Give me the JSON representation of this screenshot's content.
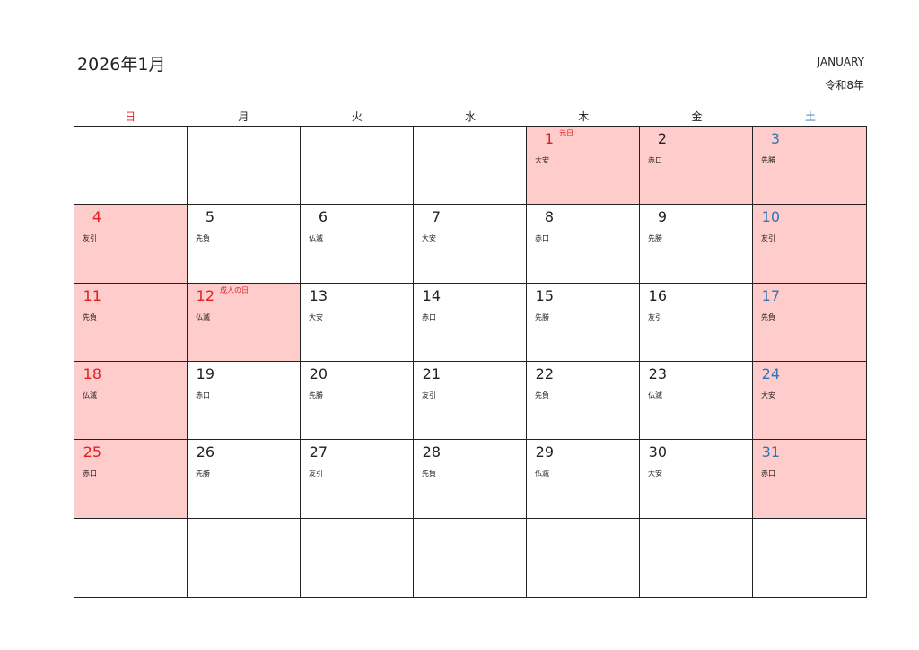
{
  "header": {
    "title": "2026年1月",
    "month_en": "JANUARY",
    "era": "令和8年"
  },
  "colors": {
    "holiday_red": "#e02020",
    "saturday_blue": "#2e75b6",
    "shade": "#ffcccc"
  },
  "weekdays": [
    {
      "label": "日",
      "color": "red"
    },
    {
      "label": "月"
    },
    {
      "label": "火"
    },
    {
      "label": "水"
    },
    {
      "label": "木"
    },
    {
      "label": "金"
    },
    {
      "label": "土",
      "color": "blue"
    }
  ],
  "weeks": [
    [
      null,
      null,
      null,
      null,
      {
        "day": "1",
        "rokuyo": "大安",
        "holiday": "元日",
        "color": "red",
        "shade": true
      },
      {
        "day": "2",
        "rokuyo": "赤口",
        "shade": true
      },
      {
        "day": "3",
        "rokuyo": "先勝",
        "color": "blue",
        "shade": true
      }
    ],
    [
      {
        "day": "4",
        "rokuyo": "友引",
        "color": "red",
        "shade": true
      },
      {
        "day": "5",
        "rokuyo": "先負"
      },
      {
        "day": "6",
        "rokuyo": "仏滅"
      },
      {
        "day": "7",
        "rokuyo": "大安"
      },
      {
        "day": "8",
        "rokuyo": "赤口"
      },
      {
        "day": "9",
        "rokuyo": "先勝"
      },
      {
        "day": "10",
        "rokuyo": "友引",
        "color": "blue",
        "shade": true
      }
    ],
    [
      {
        "day": "11",
        "rokuyo": "先負",
        "color": "red",
        "shade": true
      },
      {
        "day": "12",
        "rokuyo": "仏滅",
        "holiday": "成人の日",
        "color": "red",
        "shade": true
      },
      {
        "day": "13",
        "rokuyo": "大安"
      },
      {
        "day": "14",
        "rokuyo": "赤口"
      },
      {
        "day": "15",
        "rokuyo": "先勝"
      },
      {
        "day": "16",
        "rokuyo": "友引"
      },
      {
        "day": "17",
        "rokuyo": "先負",
        "color": "blue",
        "shade": true
      }
    ],
    [
      {
        "day": "18",
        "rokuyo": "仏滅",
        "color": "red",
        "shade": true
      },
      {
        "day": "19",
        "rokuyo": "赤口"
      },
      {
        "day": "20",
        "rokuyo": "先勝"
      },
      {
        "day": "21",
        "rokuyo": "友引"
      },
      {
        "day": "22",
        "rokuyo": "先負"
      },
      {
        "day": "23",
        "rokuyo": "仏滅"
      },
      {
        "day": "24",
        "rokuyo": "大安",
        "color": "blue",
        "shade": true
      }
    ],
    [
      {
        "day": "25",
        "rokuyo": "赤口",
        "color": "red",
        "shade": true
      },
      {
        "day": "26",
        "rokuyo": "先勝"
      },
      {
        "day": "27",
        "rokuyo": "友引"
      },
      {
        "day": "28",
        "rokuyo": "先負"
      },
      {
        "day": "29",
        "rokuyo": "仏滅"
      },
      {
        "day": "30",
        "rokuyo": "大安"
      },
      {
        "day": "31",
        "rokuyo": "赤口",
        "color": "blue",
        "shade": true
      }
    ],
    [
      null,
      null,
      null,
      null,
      null,
      null,
      null
    ]
  ]
}
